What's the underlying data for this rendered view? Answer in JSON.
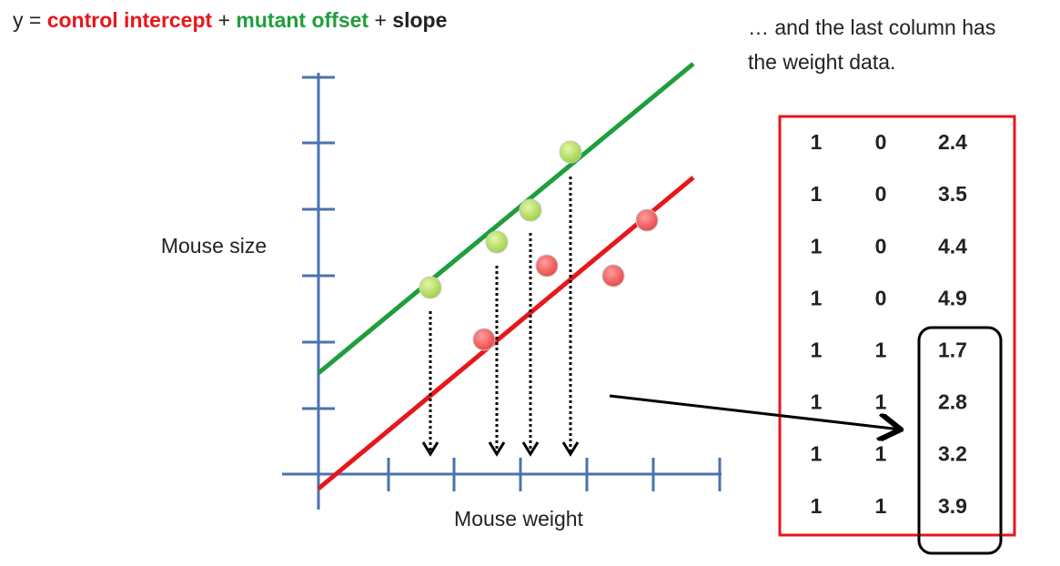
{
  "equation": {
    "parts": [
      "y =",
      "control intercept",
      "+",
      "mutant offset",
      "+",
      "slope"
    ]
  },
  "annotation": {
    "lines": [
      "… and the last column has",
      "the weight data."
    ]
  },
  "plot": {
    "y_label": "Mouse size",
    "x_label": "Mouse weight"
  },
  "table": {
    "rows": [
      {
        "color": "#e8262b",
        "cells": [
          1,
          0,
          2.4
        ]
      },
      {
        "color": "#e8262b",
        "cells": [
          1,
          0,
          3.5
        ]
      },
      {
        "color": "#e8262b",
        "cells": [
          1,
          0,
          4.4
        ]
      },
      {
        "color": "#e8262b",
        "cells": [
          1,
          0,
          4.9
        ]
      },
      {
        "color": "#1f9e3c",
        "cells": [
          1,
          1,
          1.7
        ]
      },
      {
        "color": "#1f9e3c",
        "cells": [
          1,
          1,
          2.8
        ]
      },
      {
        "color": "#1f9e3c",
        "cells": [
          1,
          1,
          3.2
        ]
      },
      {
        "color": "#1f9e3c",
        "cells": [
          1,
          1,
          3.9
        ]
      }
    ]
  }
}
